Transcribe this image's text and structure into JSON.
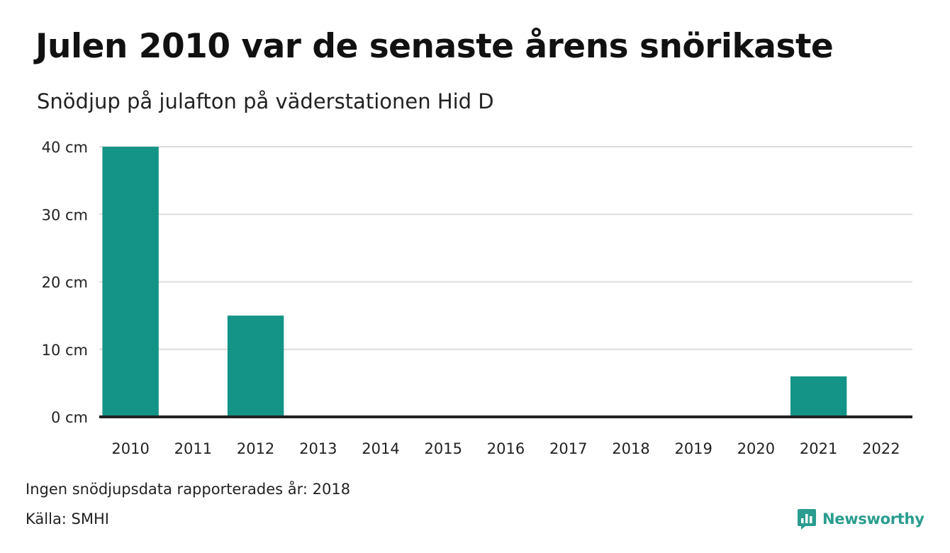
{
  "header": {
    "title": "Julen 2010 var de senaste årens snörikaste",
    "subtitle": "Snödjup på julafton på väderstationen Hid D"
  },
  "chart_data": {
    "type": "bar",
    "title": "Julen 2010 var de senaste årens snörikaste",
    "subtitle": "Snödjup på julafton på väderstationen Hid D",
    "categories": [
      "2010",
      "2011",
      "2012",
      "2013",
      "2014",
      "2015",
      "2016",
      "2017",
      "2018",
      "2019",
      "2020",
      "2021",
      "2022"
    ],
    "values": [
      40,
      0,
      15,
      0,
      0,
      0,
      0,
      0,
      null,
      0,
      0,
      6,
      0
    ],
    "unit": "cm",
    "y_ticks": [
      0,
      10,
      20,
      30,
      40
    ],
    "y_tick_labels": [
      "0 cm",
      "10 cm",
      "20 cm",
      "30 cm",
      "40 cm"
    ],
    "ylim": [
      0,
      40
    ],
    "xlabel": "",
    "ylabel": "",
    "grid": true,
    "bar_color": "#149486",
    "grid_color": "#dddddd",
    "baseline_color": "#222222"
  },
  "footer": {
    "note": "Ingen snödjupsdata rapporterades år: 2018",
    "source": "Källa: SMHI",
    "brand": "Newsworthy",
    "brand_color": "#2a9d8f"
  }
}
